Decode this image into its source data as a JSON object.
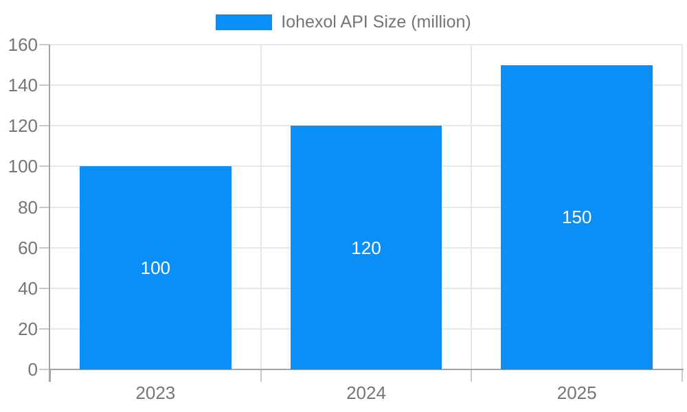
{
  "chart_data": {
    "type": "bar",
    "title": "",
    "legend": {
      "label": "Iohexol API Size (million)",
      "position": "top-center"
    },
    "categories": [
      "2023",
      "2024",
      "2025"
    ],
    "series": [
      {
        "name": "Iohexol API Size (million)",
        "values": [
          100,
          120,
          150
        ]
      }
    ],
    "bar_value_labels": [
      "100",
      "120",
      "150"
    ],
    "xlabel": "",
    "ylabel": "",
    "ylim": [
      0,
      160
    ],
    "yticks": [
      0,
      20,
      40,
      60,
      80,
      100,
      120,
      140,
      160
    ],
    "grid": true,
    "colors": {
      "bar": "#0a8ff8",
      "grid_line": "#e7e7e7",
      "axis_line": "#a2a2a2",
      "tick": "#c8c8c8",
      "axis_text": "#757575",
      "bar_label_text": "#ffffff",
      "background": "#ffffff"
    }
  }
}
